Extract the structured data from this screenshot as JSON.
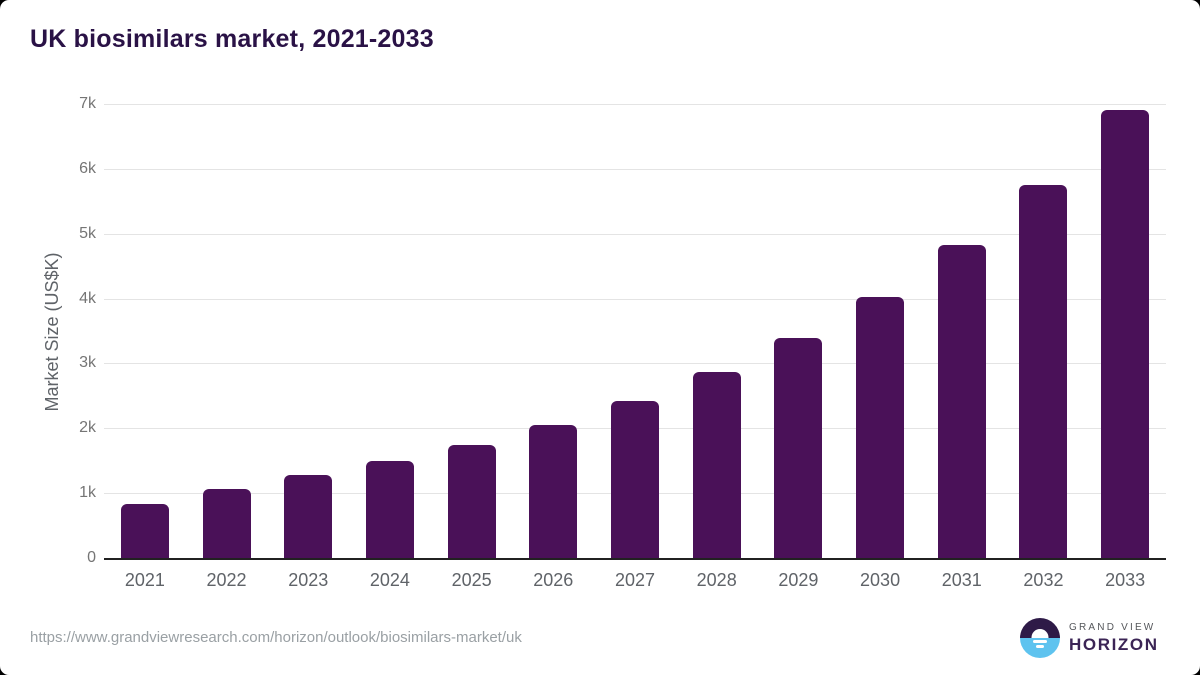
{
  "page": {
    "title": "UK biosimilars market, 2021-2033"
  },
  "chart_data": {
    "type": "bar",
    "title": "UK biosimilars market, 2021-2033",
    "categories": [
      "2021",
      "2022",
      "2023",
      "2024",
      "2025",
      "2026",
      "2027",
      "2028",
      "2029",
      "2030",
      "2031",
      "2032",
      "2033"
    ],
    "values": [
      840,
      1060,
      1280,
      1490,
      1740,
      2050,
      2420,
      2870,
      3390,
      4030,
      4820,
      5750,
      6900
    ],
    "xlabel": "",
    "ylabel": "Market Size (US$K)",
    "ylim": [
      0,
      7000
    ],
    "yticks": [
      "0",
      "1k",
      "2k",
      "3k",
      "4k",
      "5k",
      "6k",
      "7k"
    ],
    "grid": true,
    "legend": "none",
    "bar_color": "#4a1158"
  },
  "footer": {
    "source_url": "https://www.grandviewresearch.com/horizon/outlook/biosimilars-market/uk",
    "brand": {
      "top": "GRAND VIEW",
      "bottom": "HORIZON"
    }
  },
  "colors": {
    "bar": "#4a1158",
    "title_text": "#2a1246",
    "gridline": "#e4e4e4",
    "axis_line": "#212121",
    "tick_text": "#757575",
    "axis_label_text": "#5f6368",
    "url_text": "#9aa0a4",
    "brand_purple": "#3b2455",
    "brand_blue": "#5ec3ef",
    "brand_dark": "#2e1a47"
  }
}
